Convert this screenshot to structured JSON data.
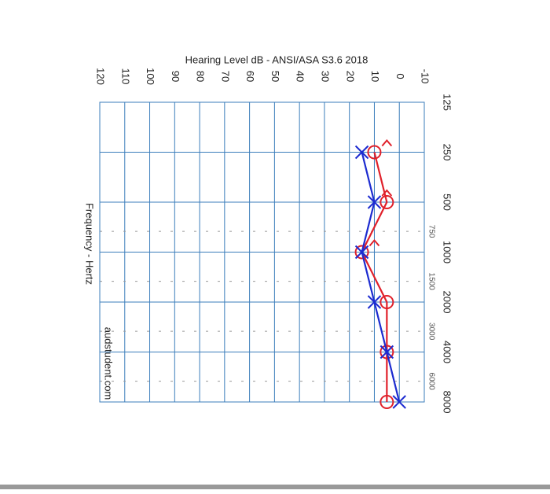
{
  "chart_data": {
    "type": "audiogram",
    "title": "Hearing Level dB - ANSI/ASA S3.6 2018",
    "x_label": "Frequency - Hertz",
    "watermark": "audstudent.com",
    "x": [
      250,
      500,
      1000,
      2000,
      4000,
      8000
    ],
    "xlim": [
      125,
      8000
    ],
    "x_log": true,
    "xticks": [
      125,
      250,
      500,
      1000,
      2000,
      4000,
      8000
    ],
    "minor_xticks": [
      750,
      1500,
      3000,
      6000
    ],
    "ylim": [
      -10,
      120
    ],
    "yticks": [
      -10,
      0,
      10,
      20,
      30,
      40,
      50,
      60,
      70,
      80,
      90,
      100,
      110,
      120
    ],
    "grid": true,
    "grid_color": "#3b7dbb",
    "series": [
      {
        "color": "#e0202a",
        "marker": "circle",
        "line": true,
        "values": [
          10,
          5,
          15,
          5,
          5,
          5
        ]
      },
      {
        "color": "#1c2bd0",
        "marker": "x",
        "line": true,
        "values": [
          15,
          10,
          15,
          10,
          5,
          0
        ]
      },
      {
        "color": "#e0202a",
        "marker": "bracket",
        "line": false,
        "values": [
          5,
          5,
          10,
          null,
          null,
          null
        ]
      }
    ]
  }
}
